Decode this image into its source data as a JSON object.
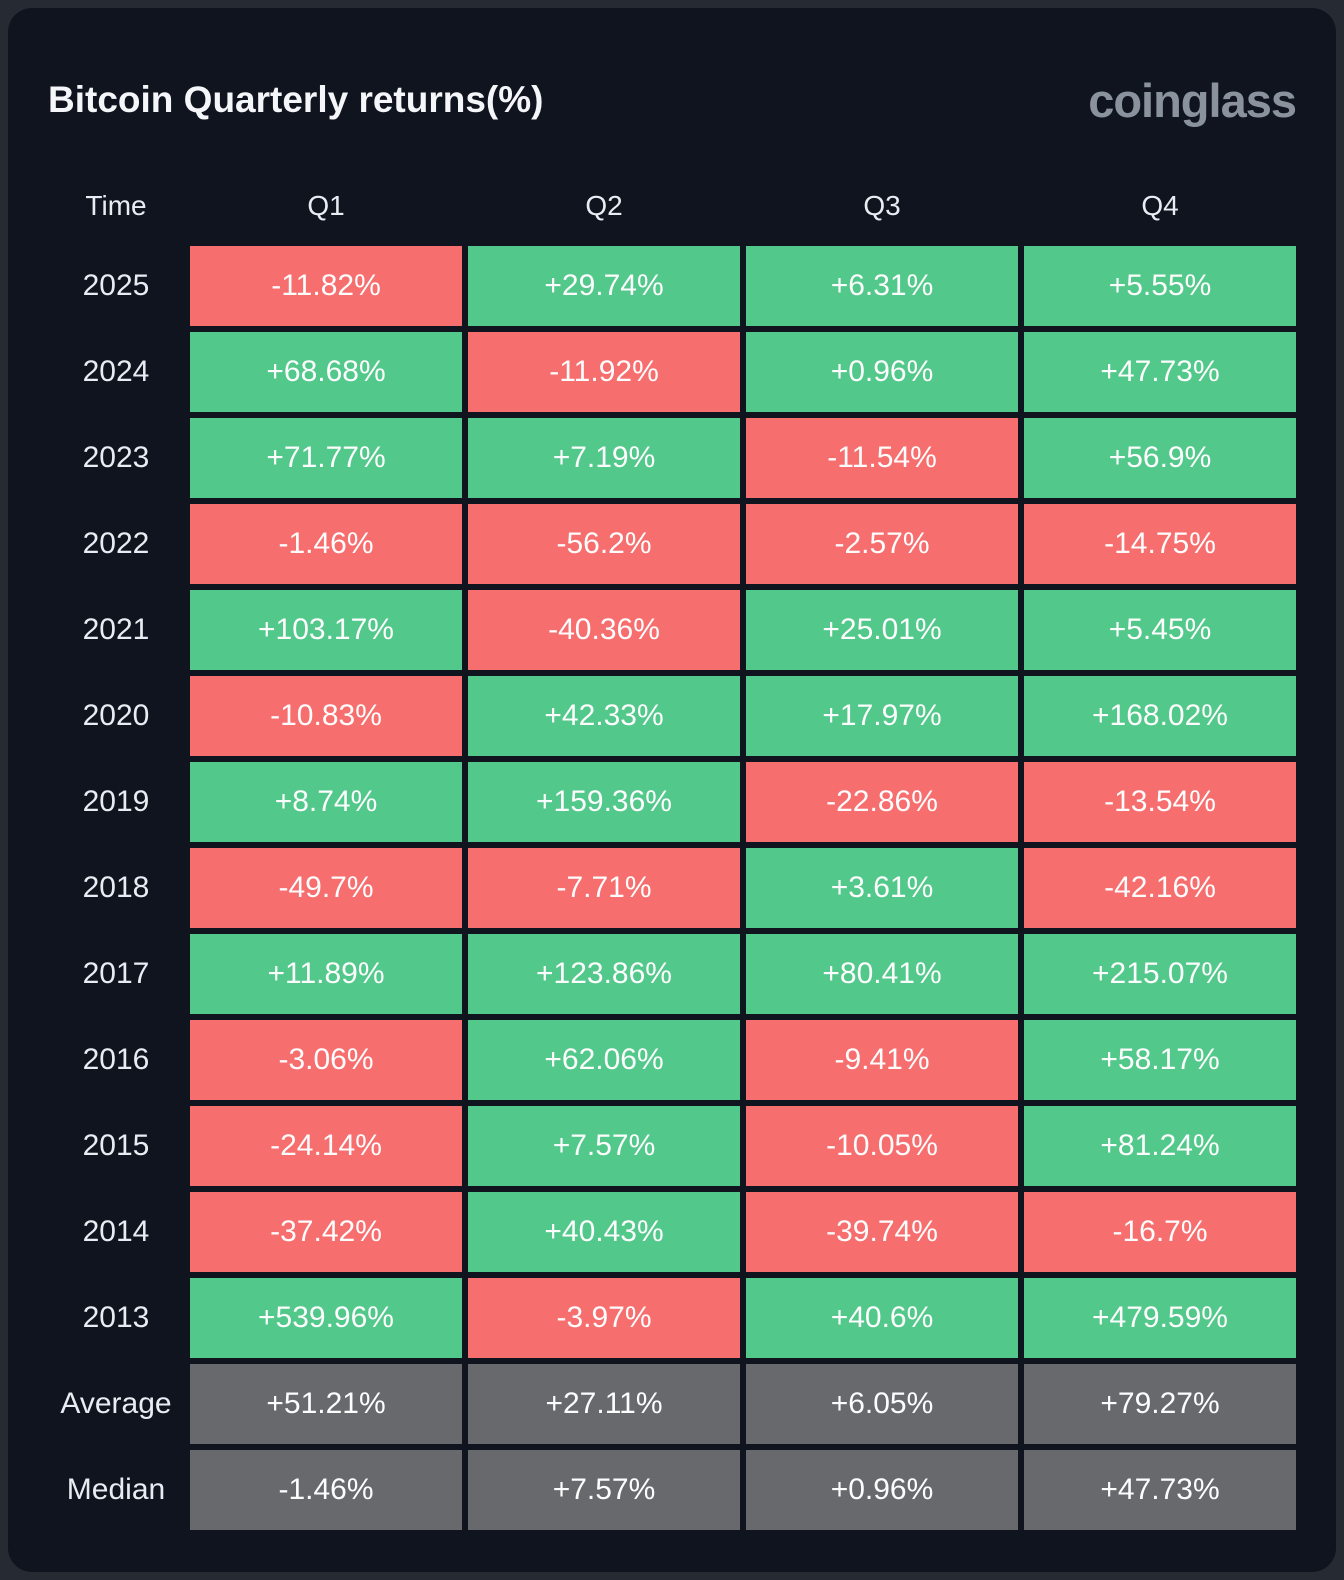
{
  "title": "Bitcoin Quarterly returns(%)",
  "brand": "coinglass",
  "colors": {
    "positive": "#52c88a",
    "negative": "#f76e6e",
    "summary": "#68696d",
    "card_background": "#10141e",
    "page_background": "#262a33",
    "text_light": "#e9edf3",
    "cell_text": "#fdfdfe"
  },
  "table": {
    "columns": [
      "Time",
      "Q1",
      "Q2",
      "Q3",
      "Q4"
    ],
    "rows": [
      {
        "label": "2025",
        "kind": "year",
        "values": [
          "-11.82%",
          "+29.74%",
          "+6.31%",
          "+5.55%"
        ]
      },
      {
        "label": "2024",
        "kind": "year",
        "values": [
          "+68.68%",
          "-11.92%",
          "+0.96%",
          "+47.73%"
        ]
      },
      {
        "label": "2023",
        "kind": "year",
        "values": [
          "+71.77%",
          "+7.19%",
          "-11.54%",
          "+56.9%"
        ]
      },
      {
        "label": "2022",
        "kind": "year",
        "values": [
          "-1.46%",
          "-56.2%",
          "-2.57%",
          "-14.75%"
        ]
      },
      {
        "label": "2021",
        "kind": "year",
        "values": [
          "+103.17%",
          "-40.36%",
          "+25.01%",
          "+5.45%"
        ]
      },
      {
        "label": "2020",
        "kind": "year",
        "values": [
          "-10.83%",
          "+42.33%",
          "+17.97%",
          "+168.02%"
        ]
      },
      {
        "label": "2019",
        "kind": "year",
        "values": [
          "+8.74%",
          "+159.36%",
          "-22.86%",
          "-13.54%"
        ]
      },
      {
        "label": "2018",
        "kind": "year",
        "values": [
          "-49.7%",
          "-7.71%",
          "+3.61%",
          "-42.16%"
        ]
      },
      {
        "label": "2017",
        "kind": "year",
        "values": [
          "+11.89%",
          "+123.86%",
          "+80.41%",
          "+215.07%"
        ]
      },
      {
        "label": "2016",
        "kind": "year",
        "values": [
          "-3.06%",
          "+62.06%",
          "-9.41%",
          "+58.17%"
        ]
      },
      {
        "label": "2015",
        "kind": "year",
        "values": [
          "-24.14%",
          "+7.57%",
          "-10.05%",
          "+81.24%"
        ]
      },
      {
        "label": "2014",
        "kind": "year",
        "values": [
          "-37.42%",
          "+40.43%",
          "-39.74%",
          "-16.7%"
        ]
      },
      {
        "label": "2013",
        "kind": "year",
        "values": [
          "+539.96%",
          "-3.97%",
          "+40.6%",
          "+479.59%"
        ]
      },
      {
        "label": "Average",
        "kind": "summary",
        "values": [
          "+51.21%",
          "+27.11%",
          "+6.05%",
          "+79.27%"
        ]
      },
      {
        "label": "Median",
        "kind": "summary",
        "values": [
          "-1.46%",
          "+7.57%",
          "+0.96%",
          "+47.73%"
        ]
      }
    ]
  },
  "chart_data": {
    "type": "heatmap",
    "title": "Bitcoin Quarterly returns(%)",
    "x_categories": [
      "Q1",
      "Q2",
      "Q3",
      "Q4"
    ],
    "y_categories": [
      "2025",
      "2024",
      "2023",
      "2022",
      "2021",
      "2020",
      "2019",
      "2018",
      "2017",
      "2016",
      "2015",
      "2014",
      "2013",
      "Average",
      "Median"
    ],
    "values_percent": [
      [
        -11.82,
        29.74,
        6.31,
        5.55
      ],
      [
        68.68,
        -11.92,
        0.96,
        47.73
      ],
      [
        71.77,
        7.19,
        -11.54,
        56.9
      ],
      [
        -1.46,
        -56.2,
        -2.57,
        -14.75
      ],
      [
        103.17,
        -40.36,
        25.01,
        5.45
      ],
      [
        -10.83,
        42.33,
        17.97,
        168.02
      ],
      [
        8.74,
        159.36,
        -22.86,
        -13.54
      ],
      [
        -49.7,
        -7.71,
        3.61,
        -42.16
      ],
      [
        11.89,
        123.86,
        80.41,
        215.07
      ],
      [
        -3.06,
        62.06,
        -9.41,
        58.17
      ],
      [
        -24.14,
        7.57,
        -10.05,
        81.24
      ],
      [
        -37.42,
        40.43,
        -39.74,
        -16.7
      ],
      [
        539.96,
        -3.97,
        40.6,
        479.59
      ],
      [
        51.21,
        27.11,
        6.05,
        79.27
      ],
      [
        -1.46,
        7.57,
        0.96,
        47.73
      ]
    ],
    "color_rule": "green = positive return, red = negative return, gray = Average/Median summary rows",
    "legend": "none",
    "grid": "cell gaps on dark card background"
  }
}
